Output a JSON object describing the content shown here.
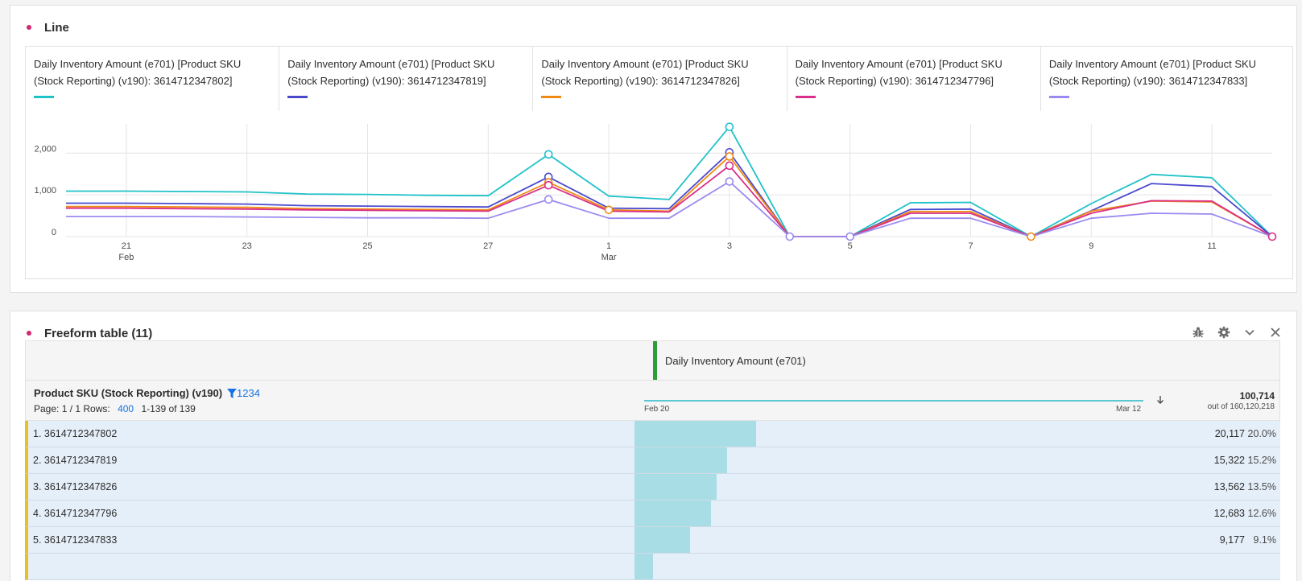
{
  "line_panel": {
    "title": "Line",
    "legend": [
      {
        "label": "Daily Inventory Amount (e701) [Product SKU (Stock Reporting) (v190): 3614712347802]",
        "color": "#1fc2c9"
      },
      {
        "label": "Daily Inventory Amount (e701) [Product SKU (Stock Reporting) (v190): 3614712347819]",
        "color": "#4b4acd"
      },
      {
        "label": "Daily Inventory Amount (e701) [Product SKU (Stock Reporting) (v190): 3614712347826]",
        "color": "#ef8a13"
      },
      {
        "label": "Daily Inventory Amount (e701) [Product SKU (Stock Reporting) (v190): 3614712347796]",
        "color": "#d92e8a"
      },
      {
        "label": "Daily Inventory Amount (e701) [Product SKU (Stock Reporting) (v190): 3614712347833]",
        "color": "#9a8bf0"
      }
    ]
  },
  "chart_data": {
    "type": "line",
    "x": [
      "Feb 20",
      "Feb 21",
      "Feb 22",
      "Feb 23",
      "Feb 24",
      "Feb 25",
      "Feb 26",
      "Feb 27",
      "Feb 28",
      "Mar 1",
      "Mar 2",
      "Mar 3",
      "Mar 4",
      "Mar 5",
      "Mar 6",
      "Mar 7",
      "Mar 8",
      "Mar 9",
      "Mar 10",
      "Mar 11",
      "Mar 12"
    ],
    "x_tick_labels": [
      {
        "day": "21",
        "month": "Feb"
      },
      {
        "day": "23",
        "month": ""
      },
      {
        "day": "25",
        "month": ""
      },
      {
        "day": "27",
        "month": ""
      },
      {
        "day": "1",
        "month": "Mar"
      },
      {
        "day": "3",
        "month": ""
      },
      {
        "day": "5",
        "month": ""
      },
      {
        "day": "7",
        "month": ""
      },
      {
        "day": "9",
        "month": ""
      },
      {
        "day": "11",
        "month": ""
      }
    ],
    "y_ticks": [
      "0",
      "1,000",
      "2,000"
    ],
    "ylim": [
      0,
      2700
    ],
    "grid": true,
    "series": [
      {
        "name": "Daily Inventory Amount (e701) [Product SKU (Stock Reporting) (v190): 3614712347802]",
        "color": "#1fc2c9",
        "values": [
          1090,
          1090,
          1080,
          1070,
          1020,
          1010,
          990,
          980,
          1970,
          970,
          890,
          2630,
          0,
          0,
          810,
          820,
          0,
          790,
          1490,
          1410,
          0
        ]
      },
      {
        "name": "Daily Inventory Amount (e701) [Product SKU (Stock Reporting) (v190): 3614712347819]",
        "color": "#4b4acd",
        "values": [
          800,
          800,
          790,
          780,
          740,
          730,
          720,
          710,
          1430,
          680,
          670,
          2020,
          0,
          0,
          650,
          660,
          0,
          620,
          1270,
          1200,
          0
        ]
      },
      {
        "name": "Daily Inventory Amount (e701) [Product SKU (Stock Reporting) (v190): 3614712347826]",
        "color": "#ef8a13",
        "values": [
          720,
          720,
          710,
          700,
          670,
          660,
          650,
          640,
          1300,
          640,
          610,
          1920,
          0,
          0,
          600,
          600,
          0,
          610,
          850,
          830,
          0
        ]
      },
      {
        "name": "Daily Inventory Amount (e701) [Product SKU (Stock Reporting) (v190): 3614712347796]",
        "color": "#d92e8a",
        "values": [
          680,
          680,
          670,
          660,
          640,
          630,
          620,
          610,
          1230,
          610,
          590,
          1700,
          0,
          0,
          560,
          560,
          0,
          560,
          860,
          850,
          0
        ]
      },
      {
        "name": "Daily Inventory Amount (e701) [Product SKU (Stock Reporting) (v190): 3614712347833]",
        "color": "#9a8bf0",
        "values": [
          480,
          480,
          480,
          470,
          460,
          450,
          450,
          440,
          890,
          440,
          440,
          1320,
          0,
          0,
          440,
          440,
          0,
          440,
          560,
          540,
          0
        ]
      }
    ],
    "markers": [
      {
        "series": 0,
        "index": 8
      },
      {
        "series": 1,
        "index": 8
      },
      {
        "series": 2,
        "index": 8
      },
      {
        "series": 3,
        "index": 8
      },
      {
        "series": 4,
        "index": 8
      },
      {
        "series": 2,
        "index": 9
      },
      {
        "series": 0,
        "index": 11
      },
      {
        "series": 1,
        "index": 11
      },
      {
        "series": 2,
        "index": 11
      },
      {
        "series": 3,
        "index": 11
      },
      {
        "series": 4,
        "index": 11
      },
      {
        "series": 4,
        "index": 12
      },
      {
        "series": 4,
        "index": 13
      },
      {
        "series": 2,
        "index": 16
      },
      {
        "series": 3,
        "index": 20
      }
    ]
  },
  "table_panel": {
    "title": "Freeform table (11)",
    "icons": [
      "bug-icon",
      "gear-icon",
      "chevron-down-icon",
      "close-icon"
    ],
    "metric_label": "Daily Inventory Amount (e701)",
    "dimension_label": "Product SKU (Stock Reporting) (v190)",
    "filter_count": "1234",
    "page_text": "Page: 1 / 1  Rows:",
    "rows_value": "400",
    "range_text": "1-139 of 139",
    "spark_start": "Feb 20",
    "spark_end": "Mar 12",
    "total": "100,714",
    "total_sub": "out of 160,120,218",
    "rows": [
      {
        "label": "1.  3614712347802",
        "value": "20,117",
        "pct": "20.0%",
        "share": 0.2
      },
      {
        "label": "2.  3614712347819",
        "value": "15,322",
        "pct": "15.2%",
        "share": 0.152
      },
      {
        "label": "3.  3614712347826",
        "value": "13,562",
        "pct": "13.5%",
        "share": 0.135
      },
      {
        "label": "4.  3614712347796",
        "value": "12,683",
        "pct": "12.6%",
        "share": 0.126
      },
      {
        "label": "5.  3614712347833",
        "value": "9,177",
        "pct": "9.1%",
        "share": 0.091
      },
      {
        "label": "",
        "value": "",
        "pct": "",
        "share": 0.031
      }
    ]
  }
}
